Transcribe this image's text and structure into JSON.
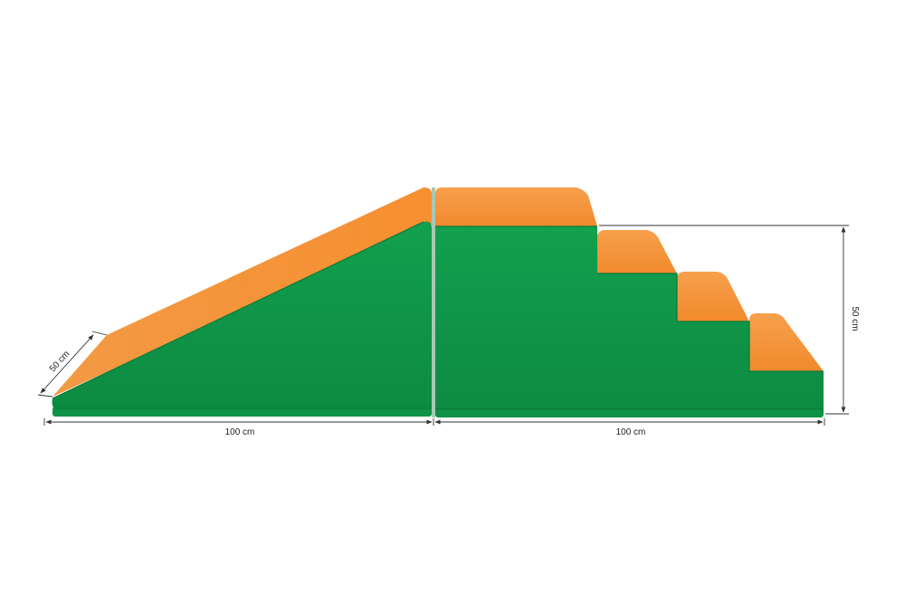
{
  "dimensions": {
    "ramp_width": "100 cm",
    "steps_width": "100 cm",
    "depth": "50 cm",
    "height": "50 cm"
  },
  "colors": {
    "green_face": "#0f9a49",
    "green_dark": "#0b7a38",
    "green_side": "#13a04f",
    "orange_top": "#f5973f",
    "orange_light": "#f8a65a",
    "dimension_line": "#333333",
    "background": "#ffffff"
  }
}
